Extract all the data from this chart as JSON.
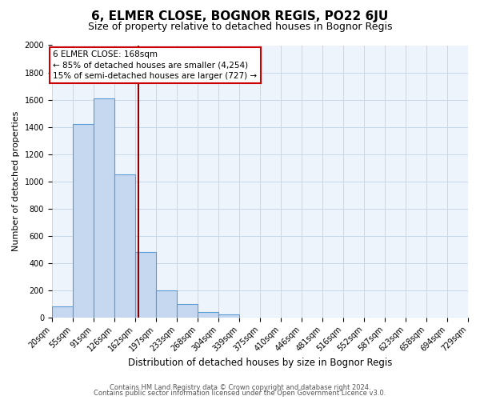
{
  "title": "6, ELMER CLOSE, BOGNOR REGIS, PO22 6JU",
  "subtitle": "Size of property relative to detached houses in Bognor Regis",
  "xlabel": "Distribution of detached houses by size in Bognor Regis",
  "ylabel": "Number of detached properties",
  "bin_edges": [
    20,
    55,
    91,
    126,
    162,
    197,
    233,
    268,
    304,
    339,
    375,
    410,
    446,
    481,
    516,
    552,
    587,
    623,
    658,
    694,
    729
  ],
  "bin_counts": [
    80,
    1420,
    1610,
    1050,
    480,
    200,
    100,
    40,
    20,
    0,
    0,
    0,
    0,
    0,
    0,
    0,
    0,
    0,
    0,
    0
  ],
  "bar_color": "#C5D8F0",
  "bar_edge_color": "#5B9BD5",
  "property_size": 168,
  "vline_color": "#8B0000",
  "annotation_line1": "6 ELMER CLOSE: 168sqm",
  "annotation_line2": "← 85% of detached houses are smaller (4,254)",
  "annotation_line3": "15% of semi-detached houses are larger (727) →",
  "annotation_box_color": "#FFFFFF",
  "annotation_box_edge": "#CC0000",
  "ylim": [
    0,
    2000
  ],
  "yticks": [
    0,
    200,
    400,
    600,
    800,
    1000,
    1200,
    1400,
    1600,
    1800,
    2000
  ],
  "footer_line1": "Contains HM Land Registry data © Crown copyright and database right 2024.",
  "footer_line2": "Contains public sector information licensed under the Open Government Licence v3.0.",
  "title_fontsize": 11,
  "subtitle_fontsize": 9,
  "xlabel_fontsize": 8.5,
  "ylabel_fontsize": 8,
  "tick_fontsize": 7,
  "annot_fontsize": 7.5,
  "footer_fontsize": 6,
  "bg_color": "#FFFFFF",
  "grid_color": "#C8D8E8",
  "plot_bg_color": "#EEF4FB"
}
